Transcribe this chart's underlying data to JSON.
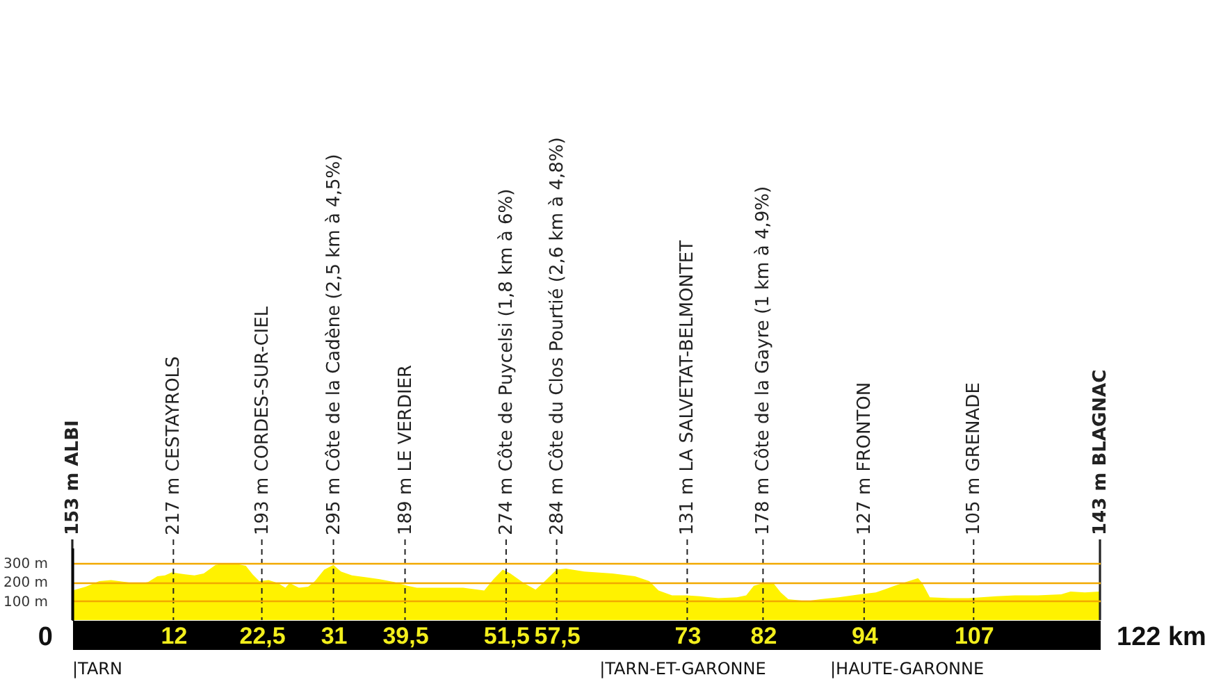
{
  "chart_data": {
    "type": "area",
    "x": [
      0,
      1.6,
      3.2,
      4.6,
      6.3,
      7.9,
      9,
      10.1,
      11,
      11.8,
      13.4,
      14.5,
      15.6,
      17,
      18.4,
      19.5,
      20.6,
      21.4,
      22.2,
      23.3,
      24.4,
      25.3,
      25.8,
      26.9,
      28,
      28.8,
      29.9,
      31,
      31.9,
      33.2,
      34.9,
      36.5,
      38.2,
      39.8,
      40.9,
      43.7,
      46.4,
      48.9,
      50,
      51.1,
      52,
      53.6,
      55,
      56.1,
      57.5,
      58.6,
      60.8,
      64.1,
      66.8,
      68.5,
      69.6,
      71.2,
      72.9,
      74.5,
      76.7,
      78.9,
      80,
      80.9,
      81.7,
      83.3,
      84.1,
      85,
      87.2,
      88.8,
      91,
      93.5,
      95.4,
      97.6,
      99.3,
      100.4,
      100.9,
      101.8,
      104.2,
      106.4,
      109.7,
      111.9,
      114.6,
      117.4,
      118.5,
      120.2,
      122
    ],
    "series": [
      {
        "color": "#fff200",
        "values": [
          155,
          175,
          205,
          210,
          200,
          190,
          200,
          230,
          235,
          250,
          240,
          235,
          245,
          290,
          300,
          295,
          285,
          240,
          205,
          210,
          195,
          170,
          195,
          170,
          175,
          205,
          265,
          290,
          255,
          235,
          225,
          215,
          200,
          180,
          170,
          170,
          170,
          155,
          215,
          265,
          245,
          195,
          160,
          205,
          265,
          270,
          255,
          245,
          230,
          205,
          155,
          130,
          130,
          125,
          115,
          120,
          130,
          180,
          190,
          190,
          145,
          110,
          100,
          110,
          120,
          135,
          145,
          180,
          205,
          220,
          195,
          120,
          115,
          115,
          125,
          130,
          130,
          135,
          150,
          145,
          150
        ]
      }
    ],
    "xlim": [
      0,
      122
    ],
    "xticks": [
      12,
      {
        "value": 22.5,
        "label": "22,5"
      },
      31,
      {
        "value": 39.5,
        "label": "39,5"
      },
      {
        "value": 51.5,
        "label": "51,5"
      },
      {
        "value": 57.5,
        "label": "57,5"
      },
      73,
      82,
      94,
      107
    ],
    "ylim": [
      0,
      380
    ],
    "yticks": [
      {
        "value": 100,
        "label": "100 m"
      },
      {
        "value": 200,
        "label": "200 m"
      },
      {
        "value": 300,
        "label": "300 m"
      }
    ],
    "grid": "y",
    "ref_lines": [
      {
        "axis": "x",
        "value": 0,
        "label": "153 m ALBI",
        "line_style": "solid"
      },
      {
        "axis": "x",
        "value": 12,
        "label": "217 m CESTAYROLS",
        "line_style": "dashed"
      },
      {
        "axis": "x",
        "value": 22.5,
        "label": "193 m CORDES-SUR-CIEL",
        "line_style": "dashed"
      },
      {
        "axis": "x",
        "value": 31,
        "label": "295 m Côte de la Cadène (2,5 km à 4,5%)",
        "line_style": "dashed"
      },
      {
        "axis": "x",
        "value": 39.5,
        "label": "189 m LE VERDIER",
        "line_style": "dashed"
      },
      {
        "axis": "x",
        "value": 51.5,
        "label": "274 m Côte de Puycelsi (1,8 km à 6%)",
        "line_style": "dashed"
      },
      {
        "axis": "x",
        "value": 57.5,
        "label": "284 m Côte du Clos Pourtié (2,6 km à 4,8%)",
        "line_style": "dashed"
      },
      {
        "axis": "x",
        "value": 73,
        "label": "131 m LA SALVETAT-BELMONTET",
        "line_style": "dashed"
      },
      {
        "axis": "x",
        "value": 82,
        "label": "178 m Côte de la Gayre (1 km à 4,9%)",
        "line_style": "dashed"
      },
      {
        "axis": "x",
        "value": 94,
        "label": "127 m FRONTON",
        "line_style": "dashed"
      },
      {
        "axis": "x",
        "value": 107,
        "label": "105 m GRENADE",
        "line_style": "dashed"
      },
      {
        "axis": "x",
        "value": 122,
        "label": "143 m BLAGNAC",
        "line_style": "solid"
      }
    ],
    "annotations": [
      "0",
      "122 km",
      "|TARN",
      "|TARN-ET-GARONNE",
      "|HAUTE-GARONNE"
    ]
  }
}
